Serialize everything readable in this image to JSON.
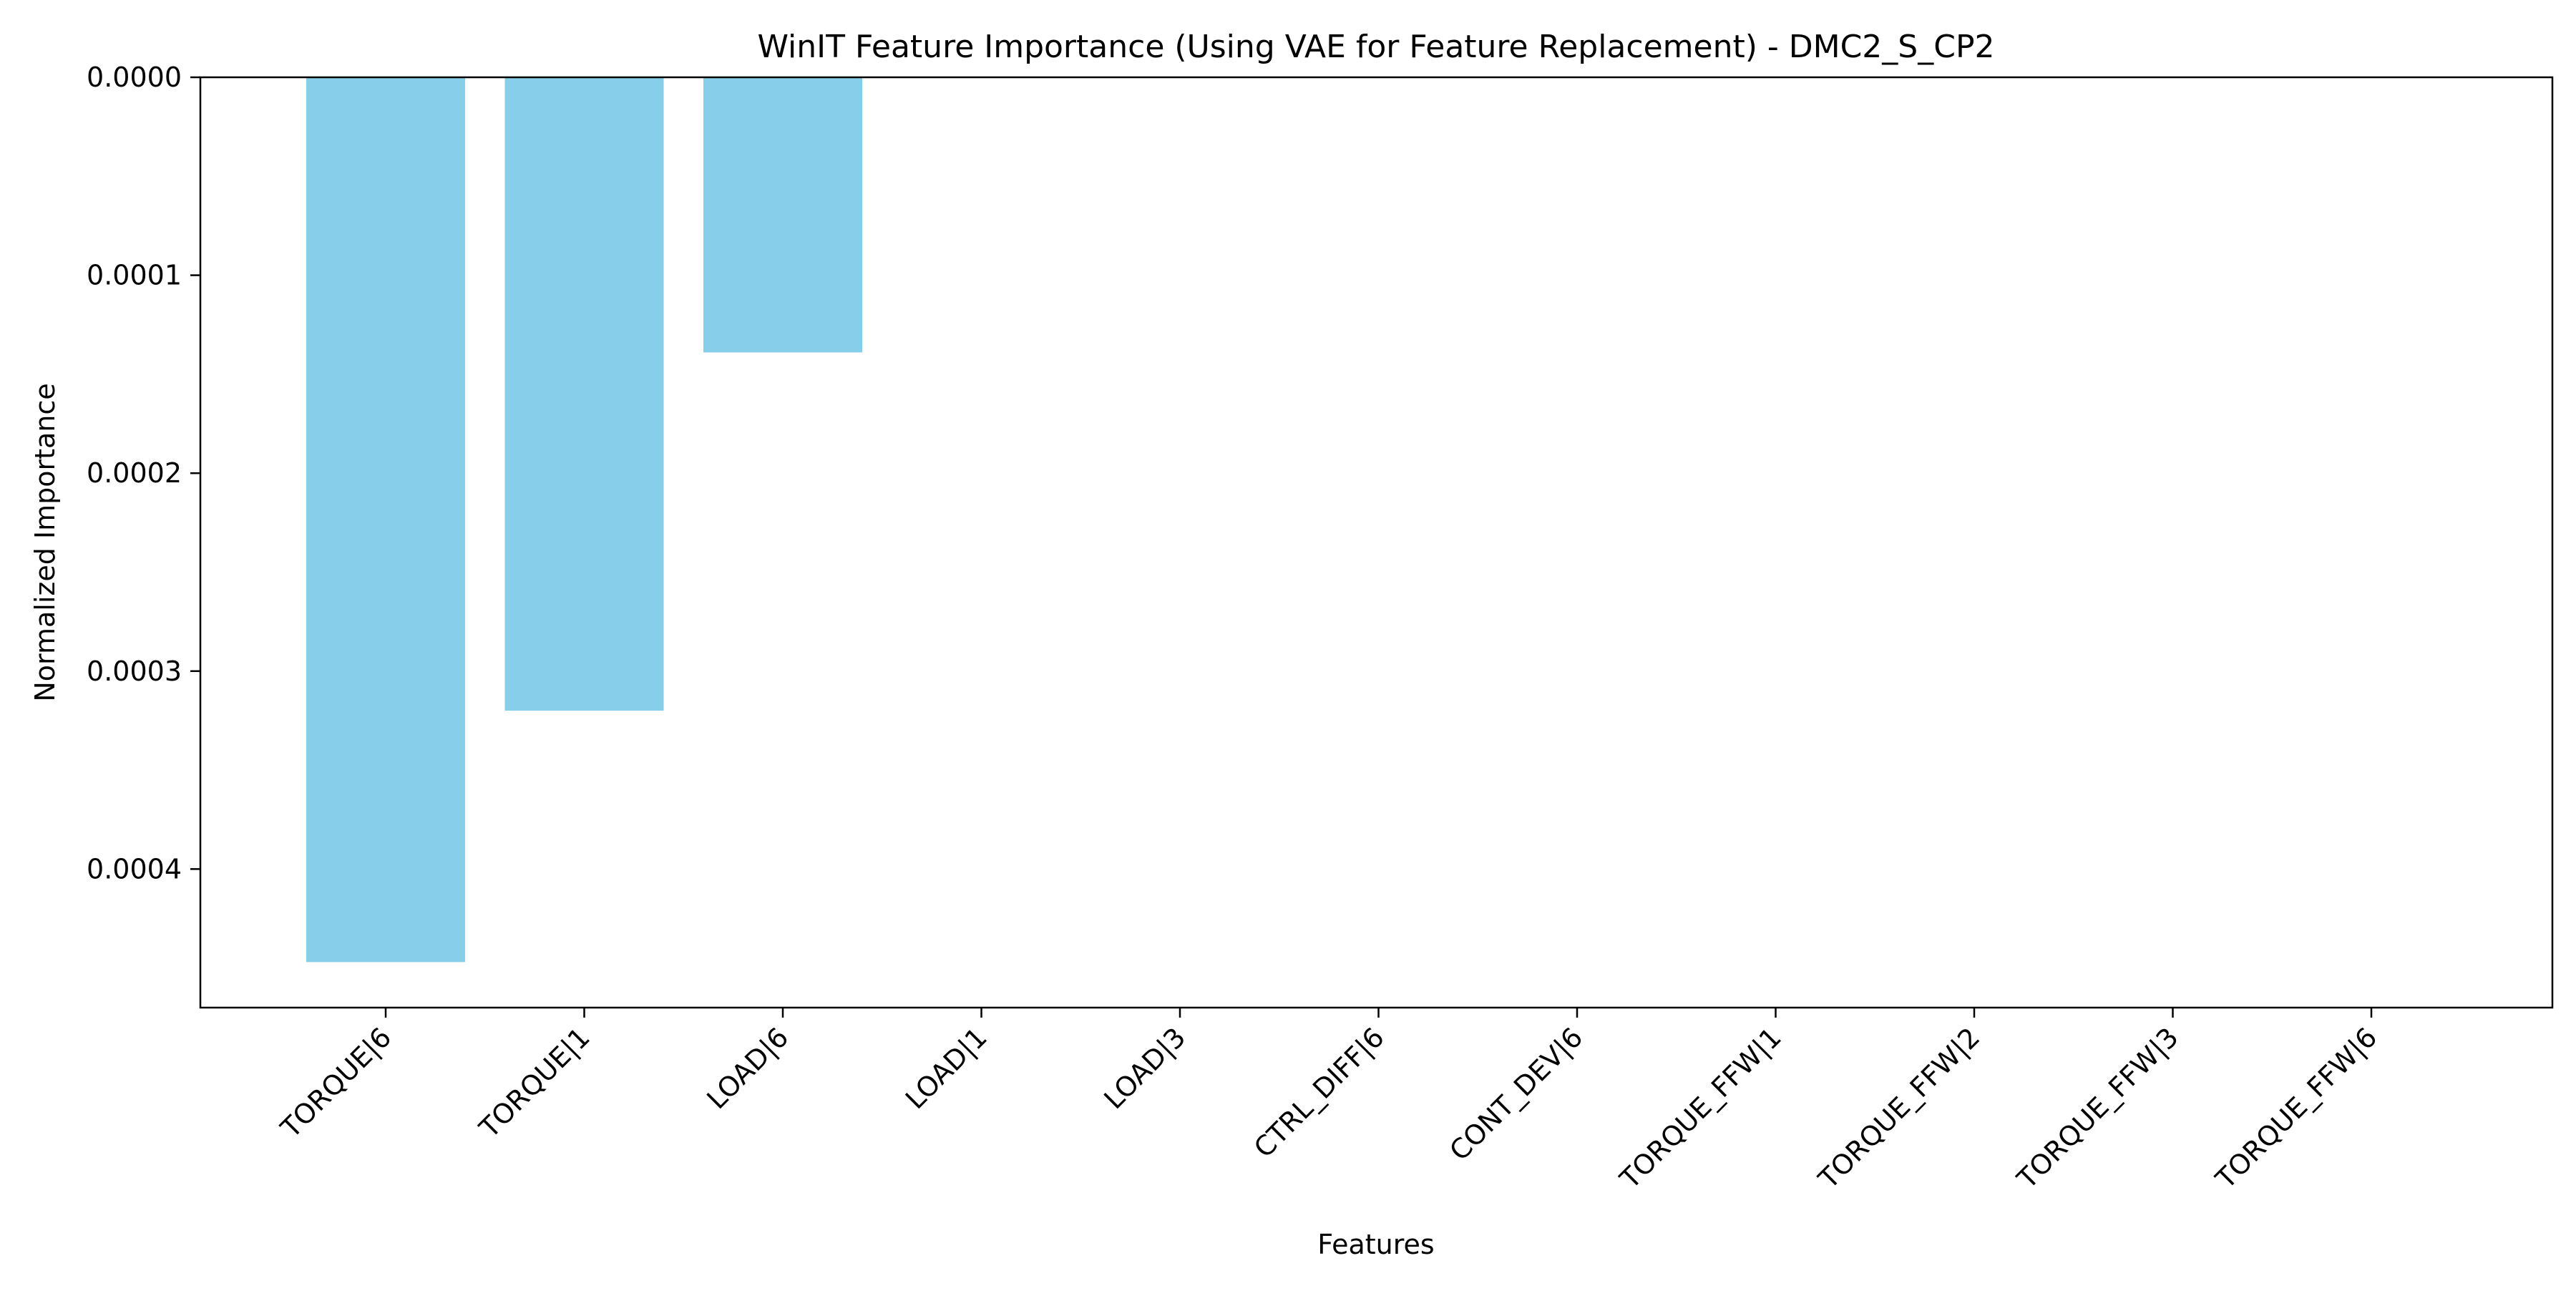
{
  "chart_data": {
    "type": "bar",
    "title": "WinIT Feature Importance (Using VAE for Feature Replacement) - DMC2_S_CP2",
    "xlabel": "Features",
    "ylabel": "Normalized Importance",
    "categories": [
      "TORQUE|6",
      "TORQUE|1",
      "LOAD|6",
      "LOAD|1",
      "LOAD|3",
      "CTRL_DIFF|6",
      "CONT_DEV|6",
      "TORQUE_FFW|1",
      "TORQUE_FFW|2",
      "TORQUE_FFW|3",
      "TORQUE_FFW|6"
    ],
    "values": [
      0.000447,
      0.00032,
      0.000139,
      0,
      0,
      0,
      0,
      0,
      0,
      0,
      0
    ],
    "ylim": [
      0,
      0.00047
    ],
    "y_inverted": true,
    "yticks": [
      "0.0000",
      "0.0001",
      "0.0002",
      "0.0003",
      "0.0004"
    ],
    "ytick_values": [
      0,
      0.0001,
      0.0002,
      0.0003,
      0.0004
    ],
    "grid": false,
    "bar_color": "#87CEEB"
  }
}
